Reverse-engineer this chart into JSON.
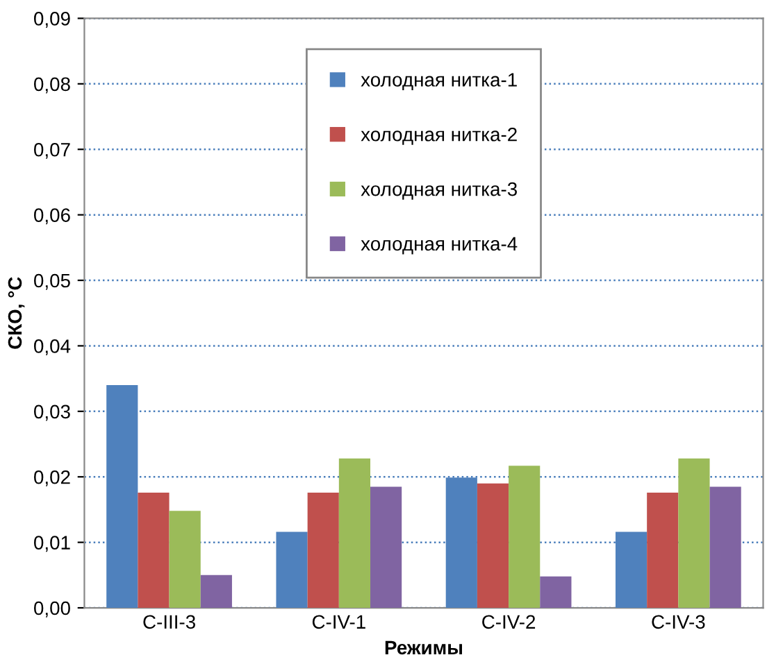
{
  "chart_data": {
    "type": "bar",
    "xlabel": "Режимы",
    "ylabel": "СКО, °С",
    "categories": [
      "С-III-3",
      "С-IV-1",
      "С-IV-2",
      "С-IV-3"
    ],
    "series": [
      {
        "name": "холодная нитка-1",
        "color": "#4f81bd",
        "values": [
          0.034,
          0.0116,
          0.0199,
          0.0116
        ]
      },
      {
        "name": "холодная нитка-2",
        "color": "#c0504d",
        "values": [
          0.0176,
          0.0176,
          0.019,
          0.0176
        ]
      },
      {
        "name": "холодная нитка-3",
        "color": "#9bbb59",
        "values": [
          0.0148,
          0.0228,
          0.0217,
          0.0228
        ]
      },
      {
        "name": "холодная нитка-4",
        "color": "#8064a2",
        "values": [
          0.005,
          0.0185,
          0.0048,
          0.0185
        ]
      }
    ],
    "ylim": [
      0,
      0.09
    ],
    "yticks": [
      {
        "value": 0,
        "label": "0,00"
      },
      {
        "value": 0.01,
        "label": "0,01"
      },
      {
        "value": 0.02,
        "label": "0,02"
      },
      {
        "value": 0.03,
        "label": "0,03"
      },
      {
        "value": 0.04,
        "label": "0,04"
      },
      {
        "value": 0.05,
        "label": "0,05"
      },
      {
        "value": 0.06,
        "label": "0,06"
      },
      {
        "value": 0.07,
        "label": "0,07"
      },
      {
        "value": 0.08,
        "label": "0,08"
      },
      {
        "value": 0.09,
        "label": "0,09"
      }
    ],
    "grid": "y",
    "legend": "top"
  }
}
